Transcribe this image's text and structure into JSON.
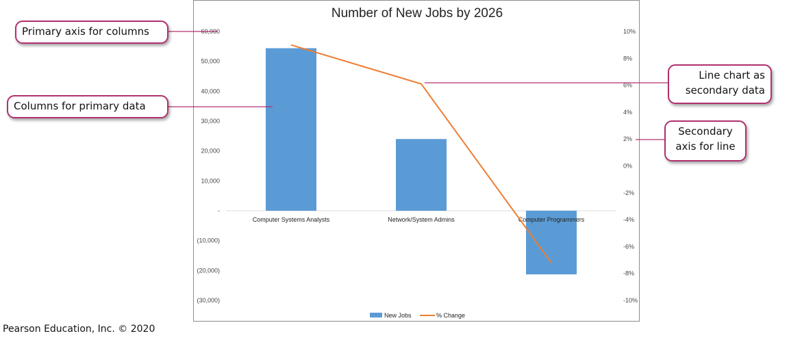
{
  "colors": {
    "bar": "#5b9bd5",
    "line": "#ed7d31",
    "callout_border": "#b0306f",
    "axis_text": "#444444",
    "frame": "#8c8c8c"
  },
  "chart_data": {
    "type": "bar",
    "title": "Number of New Jobs by 2026",
    "categories": [
      "Computer Systems Analysts",
      "Network/System Admins",
      "Computer Programmers"
    ],
    "series": [
      {
        "name": "New Jobs",
        "type": "bar",
        "axis": "primary",
        "values": [
          54400,
          24000,
          -21300
        ]
      },
      {
        "name": "% Change",
        "type": "line",
        "axis": "secondary",
        "values": [
          9.0,
          6.1,
          -7.2
        ]
      }
    ],
    "primary_axis": {
      "ylim": [
        -30000,
        60000
      ],
      "ticks": [
        60000,
        50000,
        40000,
        30000,
        20000,
        10000,
        0,
        -10000,
        -20000,
        -30000
      ],
      "tick_labels": [
        "60,000",
        "50,000",
        "40,000",
        "30,000",
        "20,000",
        "10,000",
        "-",
        "(10,000)",
        "(20,000)",
        "(30,000)"
      ]
    },
    "secondary_axis": {
      "ylim": [
        -10,
        10
      ],
      "ticks": [
        10,
        8,
        6,
        4,
        2,
        0,
        -2,
        -4,
        -6,
        -8,
        -10
      ],
      "tick_labels": [
        "10%",
        "8%",
        "6%",
        "4%",
        "2%",
        "0%",
        "-2%",
        "-4%",
        "-6%",
        "-8%",
        "-10%"
      ]
    },
    "legend": {
      "position": "bottom",
      "entries": [
        "New Jobs",
        "% Change"
      ]
    },
    "grid": false
  },
  "callouts": {
    "primary_axis": "Primary axis for columns",
    "columns": "Columns for primary data",
    "line_chart": [
      "Line chart as",
      "secondary data"
    ],
    "secondary_axis": [
      "Secondary",
      "axis for line"
    ]
  },
  "credit": "Pearson Education, Inc. © 2020"
}
